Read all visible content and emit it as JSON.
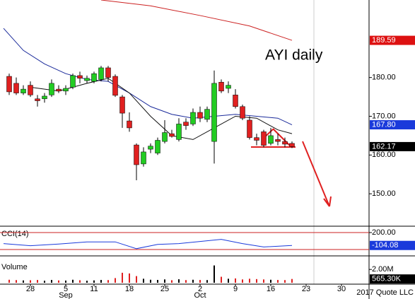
{
  "chart_data": [
    {
      "type": "candlestick",
      "title": "AYI daily",
      "xlim": [
        -1.3,
        50.9
      ],
      "ylim": [
        142,
        200
      ],
      "yticks": [
        {
          "value": 180,
          "label": "180.00"
        },
        {
          "value": 170,
          "label": "170.00"
        },
        {
          "value": 160,
          "label": "160.00"
        },
        {
          "value": 150,
          "label": "150.00"
        }
      ],
      "up_color": "#22cc22",
      "down_color": "#e02020",
      "open": [
        180.3,
        178.5,
        176,
        178,
        174.5,
        174.5,
        175.5,
        177,
        176.5,
        177.5,
        180.5,
        179.2,
        179,
        179.5,
        182.5,
        180.3,
        175,
        168.8,
        162.6,
        157.7,
        161.5,
        160.5,
        163.5,
        165.5,
        164,
        168.5,
        168,
        171,
        169.2,
        163.5,
        178.8,
        177.2,
        175.5,
        172.5,
        169,
        164.5,
        166,
        163,
        164,
        163.5,
        163
      ],
      "high": [
        181,
        180,
        178,
        179,
        175.5,
        176,
        179.5,
        178,
        178,
        181,
        181.5,
        180.5,
        181.5,
        183,
        183,
        180.8,
        175.5,
        171,
        163,
        162,
        163,
        164.5,
        169,
        166.5,
        169.5,
        169.5,
        172,
        172.5,
        172.5,
        181.8,
        179.5,
        179,
        177,
        173,
        170,
        165.5,
        166.5,
        167,
        165.5,
        164.5,
        163.5
      ],
      "low": [
        175.5,
        175.5,
        175.5,
        175,
        172.5,
        173.5,
        175,
        176,
        175.5,
        177,
        178.5,
        178.5,
        178.5,
        179,
        179,
        175,
        167,
        166,
        153.5,
        157,
        160.5,
        160,
        163,
        164.5,
        163.5,
        166.5,
        167.5,
        168.5,
        168.5,
        157.8,
        176,
        176,
        172,
        169,
        164,
        162.5,
        162,
        162.5,
        162.5,
        162,
        161.8
      ],
      "close": [
        176.3,
        176,
        177,
        175.5,
        174,
        175.2,
        178.5,
        176.5,
        177.2,
        180.5,
        179.8,
        179.8,
        181,
        182.5,
        180,
        175.4,
        170.8,
        167,
        157.5,
        160.8,
        162.3,
        163.8,
        165.8,
        164.8,
        168,
        167.6,
        171,
        169.5,
        171.8,
        178.5,
        176.5,
        178,
        172.5,
        169.5,
        164.5,
        163.8,
        162.5,
        165,
        163.5,
        162.8,
        162.17
      ],
      "series": [
        {
          "color": "#cc2222",
          "x": [
            13,
            20,
            27,
            34,
            40
          ],
          "values": [
            200,
            198.5,
            196,
            193.3,
            189.59
          ]
        },
        {
          "color": "#1a2a9a",
          "x": [
            -0.8,
            2,
            5,
            8,
            11,
            14,
            17,
            20,
            23,
            26,
            29,
            32,
            35,
            38,
            40
          ],
          "values": [
            192.7,
            187,
            183.5,
            181,
            179.5,
            179,
            176,
            172.5,
            170.5,
            169.5,
            170,
            170.5,
            170,
            169.5,
            167.8
          ]
        },
        {
          "color": "#111111",
          "x": [
            3,
            7,
            11,
            14,
            17,
            20,
            23,
            26,
            29,
            32,
            35,
            38,
            40
          ],
          "values": [
            177.5,
            176.5,
            178.5,
            179.8,
            176,
            170,
            165,
            164,
            167,
            170,
            169.5,
            166.5,
            165.5
          ]
        }
      ],
      "markers": [
        {
          "value": 189.59,
          "label": "189.59",
          "color": "#dd1111"
        },
        {
          "value": 167.8,
          "label": "167.80",
          "color": "#1a3adb"
        },
        {
          "value": 162.17,
          "label": "162.17",
          "color": "#000000"
        }
      ]
    },
    {
      "type": "line",
      "title": "CCI(14)",
      "xlim": [
        -1.3,
        50.9
      ],
      "ylim": [
        -250,
        250
      ],
      "yticks": [
        {
          "value": 200,
          "label": "200.00"
        }
      ],
      "hlines": [
        200,
        -200
      ],
      "hline_color": "#cc2222",
      "series": [
        {
          "color": "#1a3adb",
          "x": [
            -0.8,
            3,
            7,
            11,
            15,
            18,
            21,
            24,
            27,
            30,
            33,
            36,
            40
          ],
          "values": [
            -60,
            -110,
            -70,
            -20,
            -20,
            -180,
            -80,
            -60,
            -10,
            40,
            -60,
            -140,
            -104.08
          ]
        }
      ],
      "markers": [
        {
          "value": -104.08,
          "label": "-104.08",
          "color": "#1a3adb"
        }
      ]
    },
    {
      "type": "bar",
      "title": "Volume",
      "xlim": [
        -1.3,
        50.9
      ],
      "ylim": [
        0,
        3400000
      ],
      "yticks": [
        {
          "value": 2000000,
          "label": "2.00M"
        }
      ],
      "up_color": "#000000",
      "down_color": "#e02020",
      "values": [
        450000,
        400000,
        350000,
        380000,
        420000,
        300000,
        420000,
        350000,
        330000,
        450000,
        380000,
        300000,
        350000,
        420000,
        400000,
        700000,
        1500000,
        1400000,
        1000000,
        600000,
        450000,
        420000,
        500000,
        380000,
        520000,
        400000,
        450000,
        420000,
        400000,
        2600000,
        900000,
        600000,
        650000,
        500000,
        600000,
        550000,
        500000,
        450000,
        420000,
        400000,
        565300
      ],
      "xticks": [
        {
          "value": 3,
          "label": "28"
        },
        {
          "value": 8,
          "label": "5"
        },
        {
          "value": 12,
          "label": "11"
        },
        {
          "value": 17,
          "label": "18"
        },
        {
          "value": 22,
          "label": "25"
        },
        {
          "value": 27,
          "label": "2"
        },
        {
          "value": 32,
          "label": "9"
        },
        {
          "value": 37,
          "label": "16"
        },
        {
          "value": 42,
          "label": "23"
        },
        {
          "value": 47,
          "label": "30"
        }
      ],
      "months": [
        {
          "value": 8,
          "label": "Sep"
        },
        {
          "value": 27,
          "label": "Oct"
        }
      ],
      "markers": [
        {
          "value": 565300,
          "label": "565.30K",
          "color": "#000000"
        }
      ]
    }
  ],
  "credit": "2017 Quote LLC"
}
